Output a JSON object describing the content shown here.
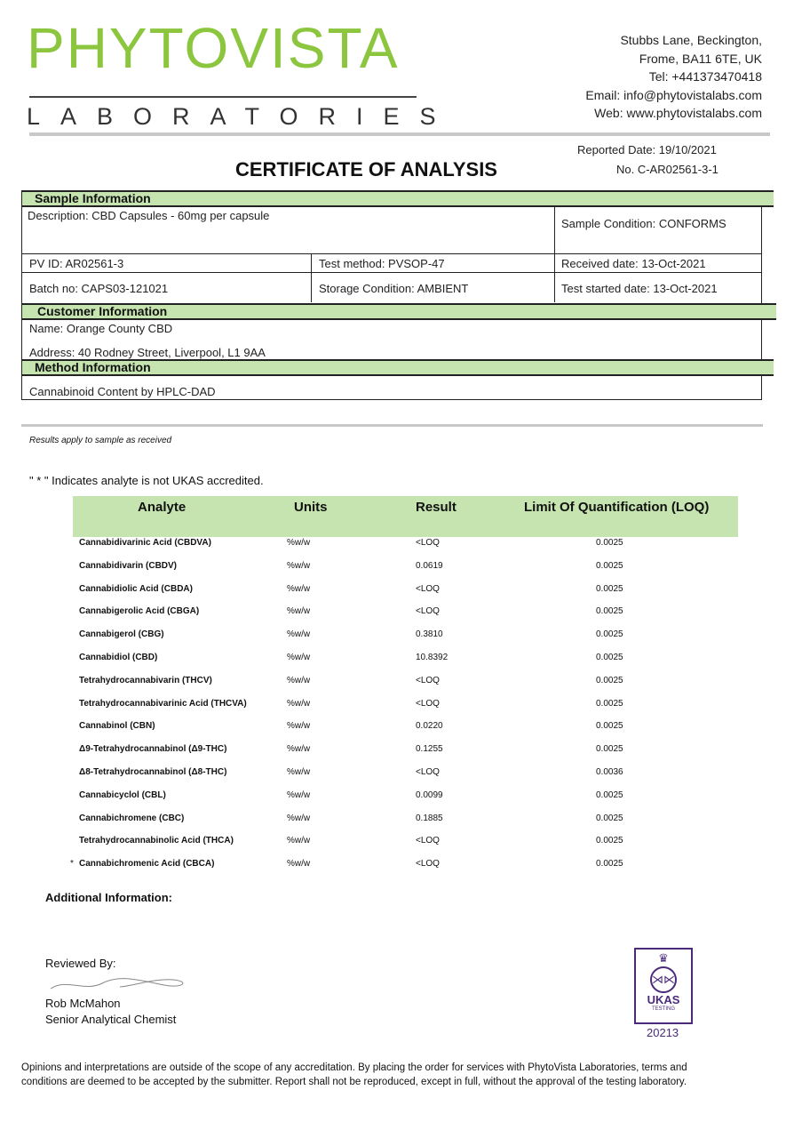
{
  "logo": {
    "name": "PHYTOVISTA",
    "sub": "LABORATORIES"
  },
  "address": [
    "Stubbs Lane, Beckington,",
    "Frome, BA11 6TE, UK",
    "Tel: +441373470418",
    "Email: info@phytovistalabs.com",
    "Web: www.phytovistalabs.com"
  ],
  "reported_date": "Reported Date: 19/10/2021",
  "cert_no": "No. C-AR02561-3-1",
  "title": "CERTIFICATE OF ANALYSIS",
  "sample": {
    "header": "Sample Information",
    "description": "Description: CBD Capsules - 60mg per capsule",
    "condition": "Sample Condition: CONFORMS",
    "pv_id": "PV ID: AR02561-3",
    "test_method": "Test method: PVSOP-47",
    "received": "Received date: 13-Oct-2021",
    "batch": "Batch no: CAPS03-121021",
    "storage": "Storage Condition: AMBIENT",
    "test_started": "Test started date: 13-Oct-2021"
  },
  "customer": {
    "header": "Customer Information",
    "name": "Name:   Orange County CBD",
    "address": "Address:  40 Rodney Street, Liverpool, L1 9AA"
  },
  "method": {
    "header": "Method Information",
    "value": "Cannabinoid Content by HPLC-DAD"
  },
  "results_note": "Results apply to sample as received",
  "ukas_note": "\" * \" Indicates analyte is not UKAS accredited.",
  "table": {
    "headers": [
      "Analyte",
      "Units",
      "Result",
      "Limit Of Quantification (LOQ)"
    ],
    "rows": [
      {
        "mark": "",
        "analyte": "Cannabidivarinic Acid (CBDVA)",
        "units": "%w/w",
        "result": "<LOQ",
        "loq": "0.0025"
      },
      {
        "mark": "",
        "analyte": "Cannabidivarin (CBDV)",
        "units": "%w/w",
        "result": "0.0619",
        "loq": "0.0025"
      },
      {
        "mark": "",
        "analyte": "Cannabidiolic Acid (CBDA)",
        "units": "%w/w",
        "result": "<LOQ",
        "loq": "0.0025"
      },
      {
        "mark": "",
        "analyte": "Cannabigerolic Acid (CBGA)",
        "units": "%w/w",
        "result": "<LOQ",
        "loq": "0.0025"
      },
      {
        "mark": "",
        "analyte": "Cannabigerol (CBG)",
        "units": "%w/w",
        "result": "0.3810",
        "loq": "0.0025"
      },
      {
        "mark": "",
        "analyte": "Cannabidiol (CBD)",
        "units": "%w/w",
        "result": "10.8392",
        "loq": "0.0025"
      },
      {
        "mark": "",
        "analyte": "Tetrahydrocannabivarin (THCV)",
        "units": "%w/w",
        "result": "<LOQ",
        "loq": "0.0025"
      },
      {
        "mark": "",
        "analyte": "Tetrahydrocannabivarinic Acid (THCVA)",
        "units": "%w/w",
        "result": "<LOQ",
        "loq": "0.0025"
      },
      {
        "mark": "",
        "analyte": "Cannabinol (CBN)",
        "units": "%w/w",
        "result": "0.0220",
        "loq": "0.0025"
      },
      {
        "mark": "",
        "analyte": "Δ9-Tetrahydrocannabinol (Δ9-THC)",
        "units": "%w/w",
        "result": "0.1255",
        "loq": "0.0025"
      },
      {
        "mark": "",
        "analyte": "Δ8-Tetrahydrocannabinol (Δ8-THC)",
        "units": "%w/w",
        "result": "<LOQ",
        "loq": "0.0036"
      },
      {
        "mark": "",
        "analyte": "Cannabicyclol (CBL)",
        "units": "%w/w",
        "result": "0.0099",
        "loq": "0.0025"
      },
      {
        "mark": "",
        "analyte": "Cannabichromene (CBC)",
        "units": "%w/w",
        "result": "0.1885",
        "loq": "0.0025"
      },
      {
        "mark": "",
        "analyte": "Tetrahydrocannabinolic Acid (THCA)",
        "units": "%w/w",
        "result": "<LOQ",
        "loq": "0.0025"
      },
      {
        "mark": "*",
        "analyte": "Cannabichromenic Acid (CBCA)",
        "units": "%w/w",
        "result": "<LOQ",
        "loq": "0.0025"
      }
    ]
  },
  "additional": "Additional Information:",
  "reviewer": {
    "label": "Reviewed By:",
    "signature": "R. J. McMahon",
    "name": "Rob McMahon",
    "role": "Senior Analytical Chemist"
  },
  "ukas": {
    "text": "UKAS",
    "sub": "TESTING",
    "number": "20213",
    "color": "#4b2a7b"
  },
  "footer": "Opinions and interpretations are outside of the scope of any accreditation. By placing the order for services with PhytoVista Laboratories, terms and conditions are deemed to be accepted by the submitter. Report shall not be reproduced, except in full, without the approval of the testing laboratory.",
  "colors": {
    "brand_green": "#8cc63f",
    "header_green": "#c6e4b0"
  }
}
